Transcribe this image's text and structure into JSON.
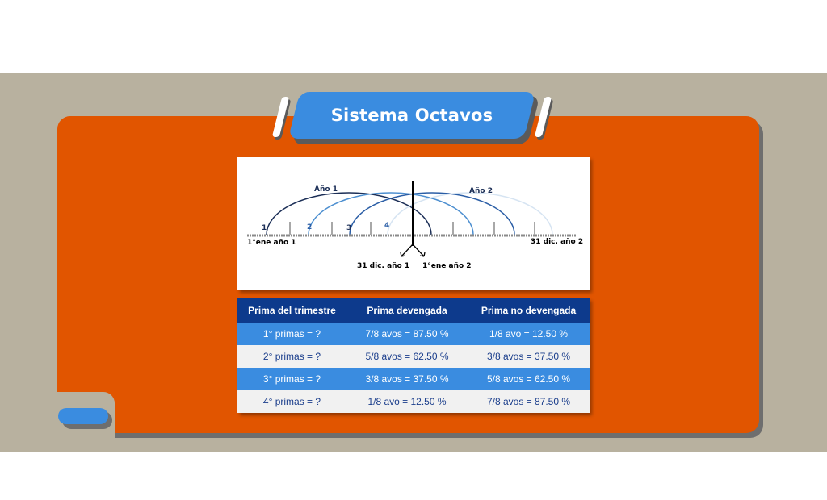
{
  "title": "Sistema  Octavos",
  "diagram": {
    "year1_label": "Año 1",
    "year2_label": "Año 2",
    "quarter_labels": [
      "1",
      "2",
      "3",
      "4"
    ],
    "start_label": "1°ene año 1",
    "end_label": "31 dic. año 2",
    "split_left_label": "31 dic. año 1",
    "split_right_label": "1°ene año 2"
  },
  "table": {
    "headers": [
      "Prima del trimestre",
      "Prima devengada",
      "Prima no devengada"
    ],
    "rows": [
      [
        "1° primas =  ?",
        "7/8 avos = 87.50 %",
        "1/8 avo = 12.50 %"
      ],
      [
        "2° primas = ?",
        "5/8 avos = 62.50 %",
        "3/8 avos = 37.50 %"
      ],
      [
        "3° primas = ?",
        "3/8 avos = 37.50 %",
        "5/8 avos = 62.50 %"
      ],
      [
        "4° primas = ?",
        "1/8 avo = 12.50 %",
        "7/8 avos = 87.50 %"
      ]
    ]
  },
  "colors": {
    "orange": "#e15500",
    "blue": "#3a8ce0",
    "navy": "#0d3a8c",
    "gray_band": "#b8b19f"
  }
}
